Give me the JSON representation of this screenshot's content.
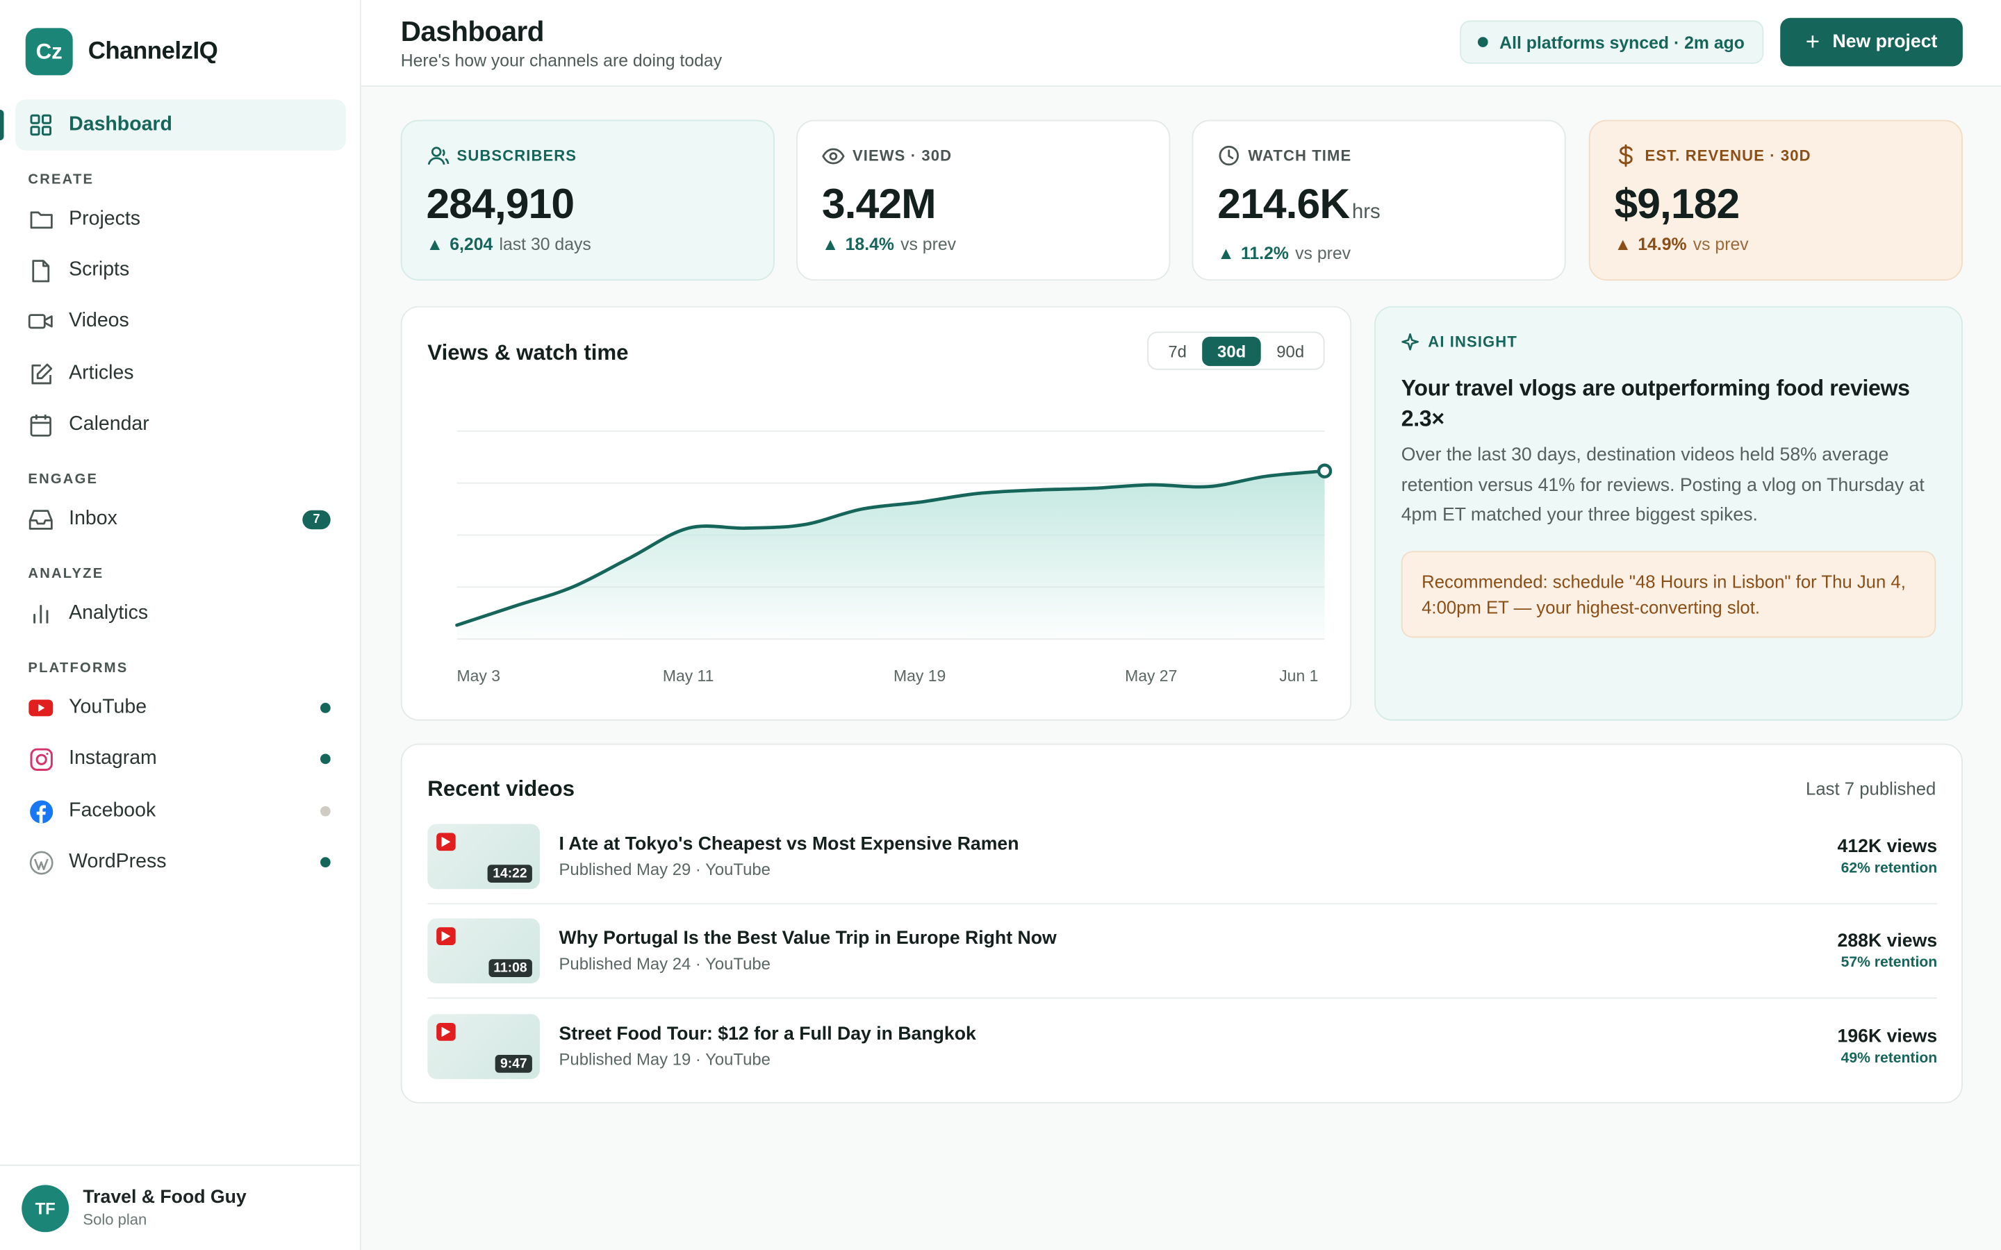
{
  "brand": {
    "logo_text": "Cz",
    "name": "ChannelzIQ"
  },
  "sidebar": {
    "dashboard": "Dashboard",
    "sections": {
      "create": "CREATE",
      "engage": "ENGAGE",
      "analyze": "ANALYZE",
      "platforms": "PLATFORMS"
    },
    "create_items": [
      {
        "label": "Projects",
        "icon": "folder-icon"
      },
      {
        "label": "Scripts",
        "icon": "file-icon"
      },
      {
        "label": "Videos",
        "icon": "video-camera-icon"
      },
      {
        "label": "Articles",
        "icon": "edit-icon"
      },
      {
        "label": "Calendar",
        "icon": "calendar-icon"
      }
    ],
    "inbox": {
      "label": "Inbox",
      "badge": "7"
    },
    "analytics": "Analytics",
    "platforms": [
      {
        "label": "YouTube",
        "status": "connected",
        "dot_color": "#15655b"
      },
      {
        "label": "Instagram",
        "status": "connected",
        "dot_color": "#15655b"
      },
      {
        "label": "Facebook",
        "status": "inactive",
        "dot_color": "#cfcbc2"
      },
      {
        "label": "WordPress",
        "status": "connected",
        "dot_color": "#15655b"
      }
    ],
    "user": {
      "initials": "TF",
      "name": "Travel & Food Guy",
      "plan": "Solo plan"
    }
  },
  "header": {
    "title": "Dashboard",
    "subtitle": "Here's how your channels are doing today",
    "sync_status": "All platforms synced · 2m ago",
    "new_project": "New project"
  },
  "stats": {
    "subscribers": {
      "label": "SUBSCRIBERS",
      "value": "284,910",
      "delta": "6,204",
      "delta_suffix": "last 30 days"
    },
    "views": {
      "label": "VIEWS · 30D",
      "value": "3.42M",
      "delta": "18.4%",
      "delta_suffix": "vs prev"
    },
    "watch_time": {
      "label": "WATCH TIME",
      "value": "214.6K",
      "unit": "hrs",
      "delta": "11.2%",
      "delta_suffix": "vs prev"
    },
    "revenue": {
      "label": "EST. REVENUE · 30D",
      "value": "$9,182",
      "delta": "14.9%",
      "delta_suffix": "vs prev"
    }
  },
  "chart_card": {
    "title": "Views & watch time",
    "ranges": [
      "7d",
      "30d",
      "90d"
    ],
    "active_range": "30d"
  },
  "chart_data": {
    "type": "area",
    "title": "Views & watch time",
    "x_tick_labels": [
      "May 3",
      "May 11",
      "May 19",
      "May 27",
      "Jun 1"
    ],
    "x": [
      "May 3",
      "May 5",
      "May 7",
      "May 9",
      "May 11",
      "May 13",
      "May 15",
      "May 17",
      "May 19",
      "May 21",
      "May 23",
      "May 25",
      "May 27",
      "May 29",
      "May 31",
      "Jun 1"
    ],
    "values": [
      0.08,
      0.19,
      0.3,
      0.47,
      0.64,
      0.64,
      0.66,
      0.75,
      0.79,
      0.84,
      0.86,
      0.87,
      0.89,
      0.88,
      0.94,
      0.97
    ],
    "ylim": [
      0,
      1.2
    ],
    "grid": true,
    "legend": "none",
    "line_color": "#15655b",
    "fill_color": "#bfe6de"
  },
  "insight": {
    "label": "AI INSIGHT",
    "title": "Your travel vlogs are outperforming food reviews 2.3×",
    "body": "Over the last 30 days, destination videos held 58% average retention versus 41% for reviews. Posting a vlog on Thursday at 4pm ET matched your three biggest spikes.",
    "recommendation": "Recommended: schedule \"48 Hours in Lisbon\" for Thu Jun 4, 4:00pm ET — your highest-converting slot."
  },
  "recent": {
    "title": "Recent videos",
    "meta": "Last 7 published",
    "videos": [
      {
        "title": "I Ate at Tokyo's Cheapest vs Most Expensive Ramen",
        "sub": "Published May 29 · YouTube",
        "duration": "14:22",
        "views": "412K views",
        "retention": "62% retention"
      },
      {
        "title": "Why Portugal Is the Best Value Trip in Europe Right Now",
        "sub": "Published May 24 · YouTube",
        "duration": "11:08",
        "views": "288K views",
        "retention": "57% retention"
      },
      {
        "title": "Street Food Tour: $12 for a Full Day in Bangkok",
        "sub": "Published May 19 · YouTube",
        "duration": "9:47",
        "views": "196K views",
        "retention": "49% retention"
      }
    ]
  },
  "colors": {
    "accent": "#15655b",
    "accent_light": "#eef8f6",
    "peach": "#fcf0e4",
    "youtube": "#e11f1f"
  }
}
